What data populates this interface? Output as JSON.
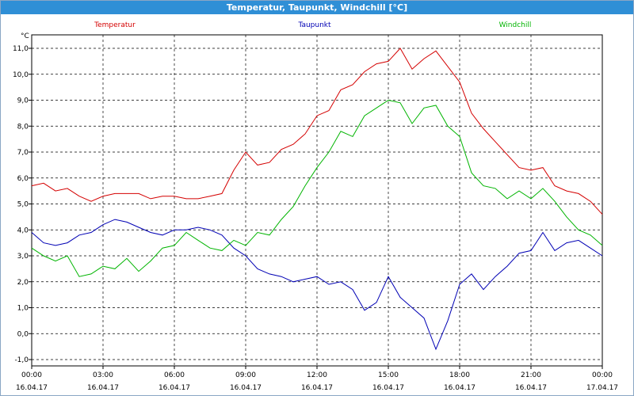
{
  "window": {
    "title": "Temperatur, Taupunkt, Windchill [°C]"
  },
  "chart_data": {
    "type": "line",
    "title": "Temperatur, Taupunkt, Windchill [°C]",
    "ylabel": "°C",
    "ylim": [
      -1.0,
      11.0
    ],
    "ytick_labels": [
      "-1,0",
      "0,0",
      "1,0",
      "2,0",
      "3,0",
      "4,0",
      "5,0",
      "6,0",
      "7,0",
      "8,0",
      "9,0",
      "10,0",
      "11,0"
    ],
    "xtick_labels": [
      {
        "time": "00:00",
        "date": "16.04.17"
      },
      {
        "time": "03:00",
        "date": "16.04.17"
      },
      {
        "time": "06:00",
        "date": "16.04.17"
      },
      {
        "time": "09:00",
        "date": "16.04.17"
      },
      {
        "time": "12:00",
        "date": "16.04.17"
      },
      {
        "time": "15:00",
        "date": "16.04.17"
      },
      {
        "time": "18:00",
        "date": "16.04.17"
      },
      {
        "time": "21:00",
        "date": "16.04.17"
      },
      {
        "time": "00:00",
        "date": "17.04.17"
      }
    ],
    "grid": true,
    "series": [
      {
        "name": "Temperatur",
        "color": "#d40000",
        "points": [
          [
            "00:00",
            5.7
          ],
          [
            "00:30",
            5.8
          ],
          [
            "01:00",
            5.5
          ],
          [
            "01:30",
            5.6
          ],
          [
            "02:00",
            5.3
          ],
          [
            "02:30",
            5.1
          ],
          [
            "03:00",
            5.3
          ],
          [
            "03:30",
            5.4
          ],
          [
            "04:00",
            5.4
          ],
          [
            "04:30",
            5.4
          ],
          [
            "05:00",
            5.2
          ],
          [
            "05:30",
            5.3
          ],
          [
            "06:00",
            5.3
          ],
          [
            "06:30",
            5.2
          ],
          [
            "07:00",
            5.2
          ],
          [
            "07:30",
            5.3
          ],
          [
            "08:00",
            5.4
          ],
          [
            "08:30",
            6.3
          ],
          [
            "09:00",
            7.0
          ],
          [
            "09:30",
            6.5
          ],
          [
            "10:00",
            6.6
          ],
          [
            "10:30",
            7.1
          ],
          [
            "11:00",
            7.3
          ],
          [
            "11:30",
            7.7
          ],
          [
            "12:00",
            8.4
          ],
          [
            "12:30",
            8.6
          ],
          [
            "13:00",
            9.4
          ],
          [
            "13:30",
            9.6
          ],
          [
            "14:00",
            10.1
          ],
          [
            "14:30",
            10.4
          ],
          [
            "15:00",
            10.5
          ],
          [
            "15:30",
            11.0
          ],
          [
            "16:00",
            10.2
          ],
          [
            "16:30",
            10.6
          ],
          [
            "17:00",
            10.9
          ],
          [
            "17:30",
            10.3
          ],
          [
            "18:00",
            9.7
          ],
          [
            "18:30",
            8.5
          ],
          [
            "19:00",
            7.9
          ],
          [
            "19:30",
            7.4
          ],
          [
            "20:00",
            6.9
          ],
          [
            "20:30",
            6.4
          ],
          [
            "21:00",
            6.3
          ],
          [
            "21:30",
            6.4
          ],
          [
            "22:00",
            5.7
          ],
          [
            "22:30",
            5.5
          ],
          [
            "23:00",
            5.4
          ],
          [
            "23:30",
            5.1
          ],
          [
            "24:00",
            4.6
          ]
        ]
      },
      {
        "name": "Taupunkt",
        "color": "#0000b4",
        "points": [
          [
            "00:00",
            3.9
          ],
          [
            "00:30",
            3.5
          ],
          [
            "01:00",
            3.4
          ],
          [
            "01:30",
            3.5
          ],
          [
            "02:00",
            3.8
          ],
          [
            "02:30",
            3.9
          ],
          [
            "03:00",
            4.2
          ],
          [
            "03:30",
            4.4
          ],
          [
            "04:00",
            4.3
          ],
          [
            "04:30",
            4.1
          ],
          [
            "05:00",
            3.9
          ],
          [
            "05:30",
            3.8
          ],
          [
            "06:00",
            4.0
          ],
          [
            "06:30",
            4.0
          ],
          [
            "07:00",
            4.1
          ],
          [
            "07:30",
            4.0
          ],
          [
            "08:00",
            3.8
          ],
          [
            "08:30",
            3.3
          ],
          [
            "09:00",
            3.0
          ],
          [
            "09:30",
            2.5
          ],
          [
            "10:00",
            2.3
          ],
          [
            "10:30",
            2.2
          ],
          [
            "11:00",
            2.0
          ],
          [
            "11:30",
            2.1
          ],
          [
            "12:00",
            2.2
          ],
          [
            "12:30",
            1.9
          ],
          [
            "13:00",
            2.0
          ],
          [
            "13:30",
            1.7
          ],
          [
            "14:00",
            0.9
          ],
          [
            "14:30",
            1.2
          ],
          [
            "15:00",
            2.2
          ],
          [
            "15:30",
            1.4
          ],
          [
            "16:00",
            1.0
          ],
          [
            "16:30",
            0.6
          ],
          [
            "17:00",
            -0.6
          ],
          [
            "17:30",
            0.5
          ],
          [
            "18:00",
            1.9
          ],
          [
            "18:30",
            2.3
          ],
          [
            "19:00",
            1.7
          ],
          [
            "19:30",
            2.2
          ],
          [
            "20:00",
            2.6
          ],
          [
            "20:30",
            3.1
          ],
          [
            "21:00",
            3.2
          ],
          [
            "21:30",
            3.9
          ],
          [
            "22:00",
            3.2
          ],
          [
            "22:30",
            3.5
          ],
          [
            "23:00",
            3.6
          ],
          [
            "23:30",
            3.3
          ],
          [
            "24:00",
            3.0
          ]
        ]
      },
      {
        "name": "Windchill",
        "color": "#00b400",
        "points": [
          [
            "00:00",
            3.3
          ],
          [
            "00:30",
            3.0
          ],
          [
            "01:00",
            2.8
          ],
          [
            "01:30",
            3.0
          ],
          [
            "02:00",
            2.2
          ],
          [
            "02:30",
            2.3
          ],
          [
            "03:00",
            2.6
          ],
          [
            "03:30",
            2.5
          ],
          [
            "04:00",
            2.9
          ],
          [
            "04:30",
            2.4
          ],
          [
            "05:00",
            2.8
          ],
          [
            "05:30",
            3.3
          ],
          [
            "06:00",
            3.4
          ],
          [
            "06:30",
            3.9
          ],
          [
            "07:00",
            3.6
          ],
          [
            "07:30",
            3.3
          ],
          [
            "08:00",
            3.2
          ],
          [
            "08:30",
            3.6
          ],
          [
            "09:00",
            3.4
          ],
          [
            "09:30",
            3.9
          ],
          [
            "10:00",
            3.8
          ],
          [
            "10:30",
            4.4
          ],
          [
            "11:00",
            4.9
          ],
          [
            "11:30",
            5.7
          ],
          [
            "12:00",
            6.4
          ],
          [
            "12:30",
            7.0
          ],
          [
            "13:00",
            7.8
          ],
          [
            "13:30",
            7.6
          ],
          [
            "14:00",
            8.4
          ],
          [
            "14:30",
            8.7
          ],
          [
            "15:00",
            9.0
          ],
          [
            "15:30",
            8.9
          ],
          [
            "16:00",
            8.1
          ],
          [
            "16:30",
            8.7
          ],
          [
            "17:00",
            8.8
          ],
          [
            "17:30",
            8.0
          ],
          [
            "18:00",
            7.6
          ],
          [
            "18:30",
            6.2
          ],
          [
            "19:00",
            5.7
          ],
          [
            "19:30",
            5.6
          ],
          [
            "20:00",
            5.2
          ],
          [
            "20:30",
            5.5
          ],
          [
            "21:00",
            5.2
          ],
          [
            "21:30",
            5.6
          ],
          [
            "22:00",
            5.1
          ],
          [
            "22:30",
            4.5
          ],
          [
            "23:00",
            4.0
          ],
          [
            "23:30",
            3.8
          ],
          [
            "24:00",
            3.4
          ]
        ]
      }
    ]
  }
}
